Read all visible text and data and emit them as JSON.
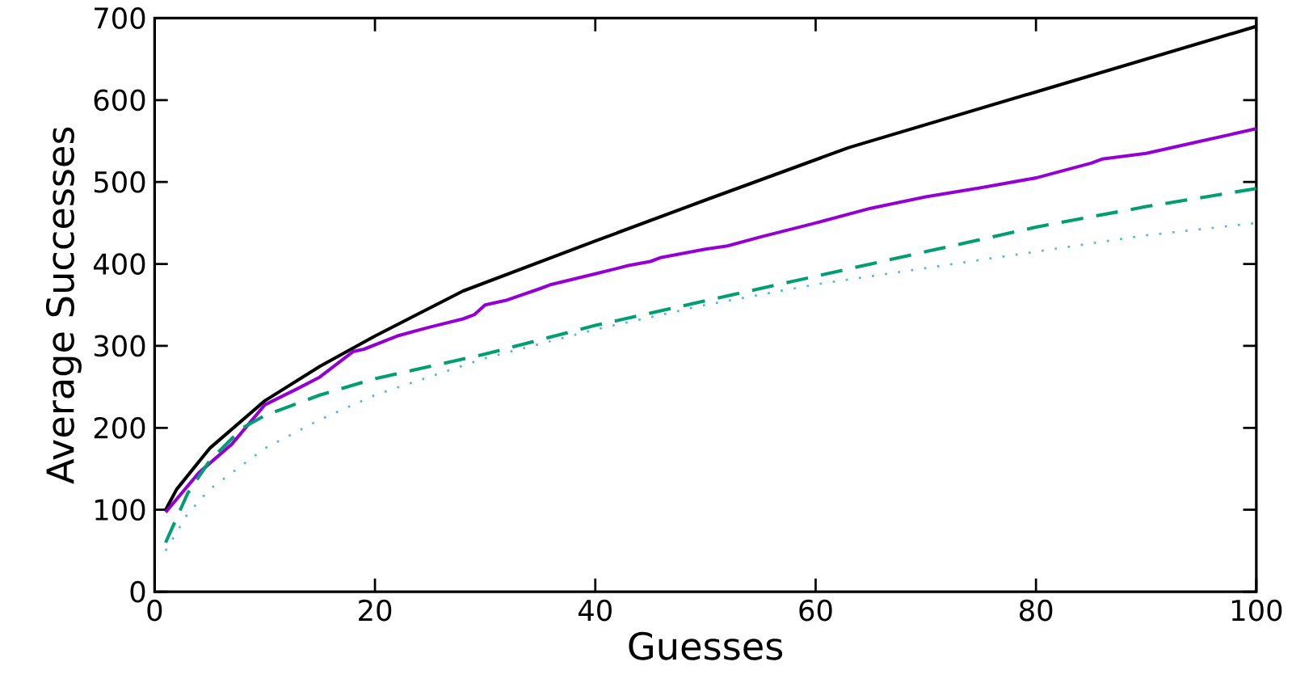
{
  "chart_data": {
    "type": "line",
    "xlabel": "Guesses",
    "ylabel": "Average Successes",
    "xlim": [
      0,
      100
    ],
    "ylim": [
      0,
      700
    ],
    "xticks": [
      0,
      20,
      40,
      60,
      80,
      100
    ],
    "yticks": [
      0,
      100,
      200,
      300,
      400,
      500,
      600,
      700
    ],
    "grid": false,
    "series": [
      {
        "color": "#000000",
        "line_style": "solid",
        "x": [
          1,
          2,
          5,
          10,
          15,
          20,
          28,
          40,
          50,
          63,
          80,
          100
        ],
        "values": [
          100,
          125,
          175,
          233,
          275,
          312,
          367,
          428,
          478,
          542,
          610,
          690
        ]
      },
      {
        "color": "#9400d3",
        "line_style": "solid",
        "x": [
          1,
          4,
          7,
          10,
          13,
          15,
          18,
          19,
          22,
          25,
          28,
          29,
          30,
          32,
          35,
          36,
          40,
          43,
          45,
          46,
          50,
          52,
          55,
          60,
          65,
          70,
          75,
          80,
          85,
          86,
          90,
          95,
          100
        ],
        "values": [
          97,
          145,
          180,
          228,
          248,
          262,
          293,
          296,
          312,
          323,
          333,
          338,
          350,
          356,
          370,
          375,
          388,
          398,
          403,
          408,
          418,
          422,
          433,
          450,
          468,
          482,
          493,
          505,
          523,
          528,
          535,
          550,
          565
        ]
      },
      {
        "color": "#009e73",
        "line_style": "dashed",
        "x": [
          1,
          3,
          5,
          8,
          10,
          15,
          20,
          30,
          40,
          50,
          60,
          70,
          80,
          90,
          100
        ],
        "values": [
          60,
          120,
          160,
          200,
          215,
          240,
          260,
          290,
          325,
          355,
          385,
          415,
          445,
          470,
          492
        ]
      },
      {
        "color": "#56b4e9",
        "line_style": "dotted",
        "x": [
          1,
          3,
          5,
          10,
          15,
          20,
          30,
          40,
          50,
          60,
          70,
          80,
          90,
          100
        ],
        "values": [
          50,
          95,
          125,
          175,
          210,
          240,
          285,
          320,
          350,
          375,
          395,
          415,
          435,
          450
        ]
      }
    ]
  }
}
